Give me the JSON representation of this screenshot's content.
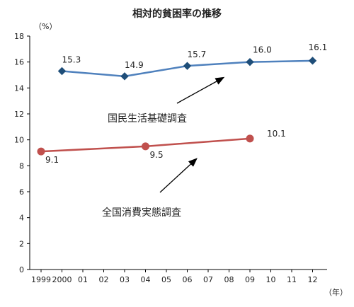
{
  "chart_data": {
    "type": "line",
    "title": "相対的貧困率の推移",
    "y_unit_label": "（%）",
    "x_unit_label": "（年）",
    "ylim": [
      0,
      18
    ],
    "yticks": [
      "0",
      "2",
      "4",
      "6",
      "8",
      "10",
      "12",
      "14",
      "16",
      "18"
    ],
    "x_categories": [
      "1999",
      "2000",
      "01",
      "02",
      "03",
      "04",
      "05",
      "06",
      "07",
      "08",
      "09",
      "10",
      "11",
      "12"
    ],
    "grid": false,
    "legend": "none",
    "series": [
      {
        "name": "国民生活基礎調査",
        "color": "#4f81bd",
        "marker": "diamond",
        "points": [
          {
            "x": "2000",
            "value": 15.3,
            "label": "15.3"
          },
          {
            "x": "03",
            "value": 14.9,
            "label": "14.9"
          },
          {
            "x": "06",
            "value": 15.7,
            "label": "15.7"
          },
          {
            "x": "09",
            "value": 16.0,
            "label": "16.0"
          },
          {
            "x": "12",
            "value": 16.1,
            "label": "16.1"
          }
        ]
      },
      {
        "name": "全国消費実態調査",
        "color": "#c0504d",
        "marker": "circle",
        "points": [
          {
            "x": "1999",
            "value": 9.1,
            "label": "9.1"
          },
          {
            "x": "04",
            "value": 9.5,
            "label": "9.5"
          },
          {
            "x": "09",
            "value": 10.1,
            "label": "10.1"
          }
        ]
      }
    ]
  }
}
